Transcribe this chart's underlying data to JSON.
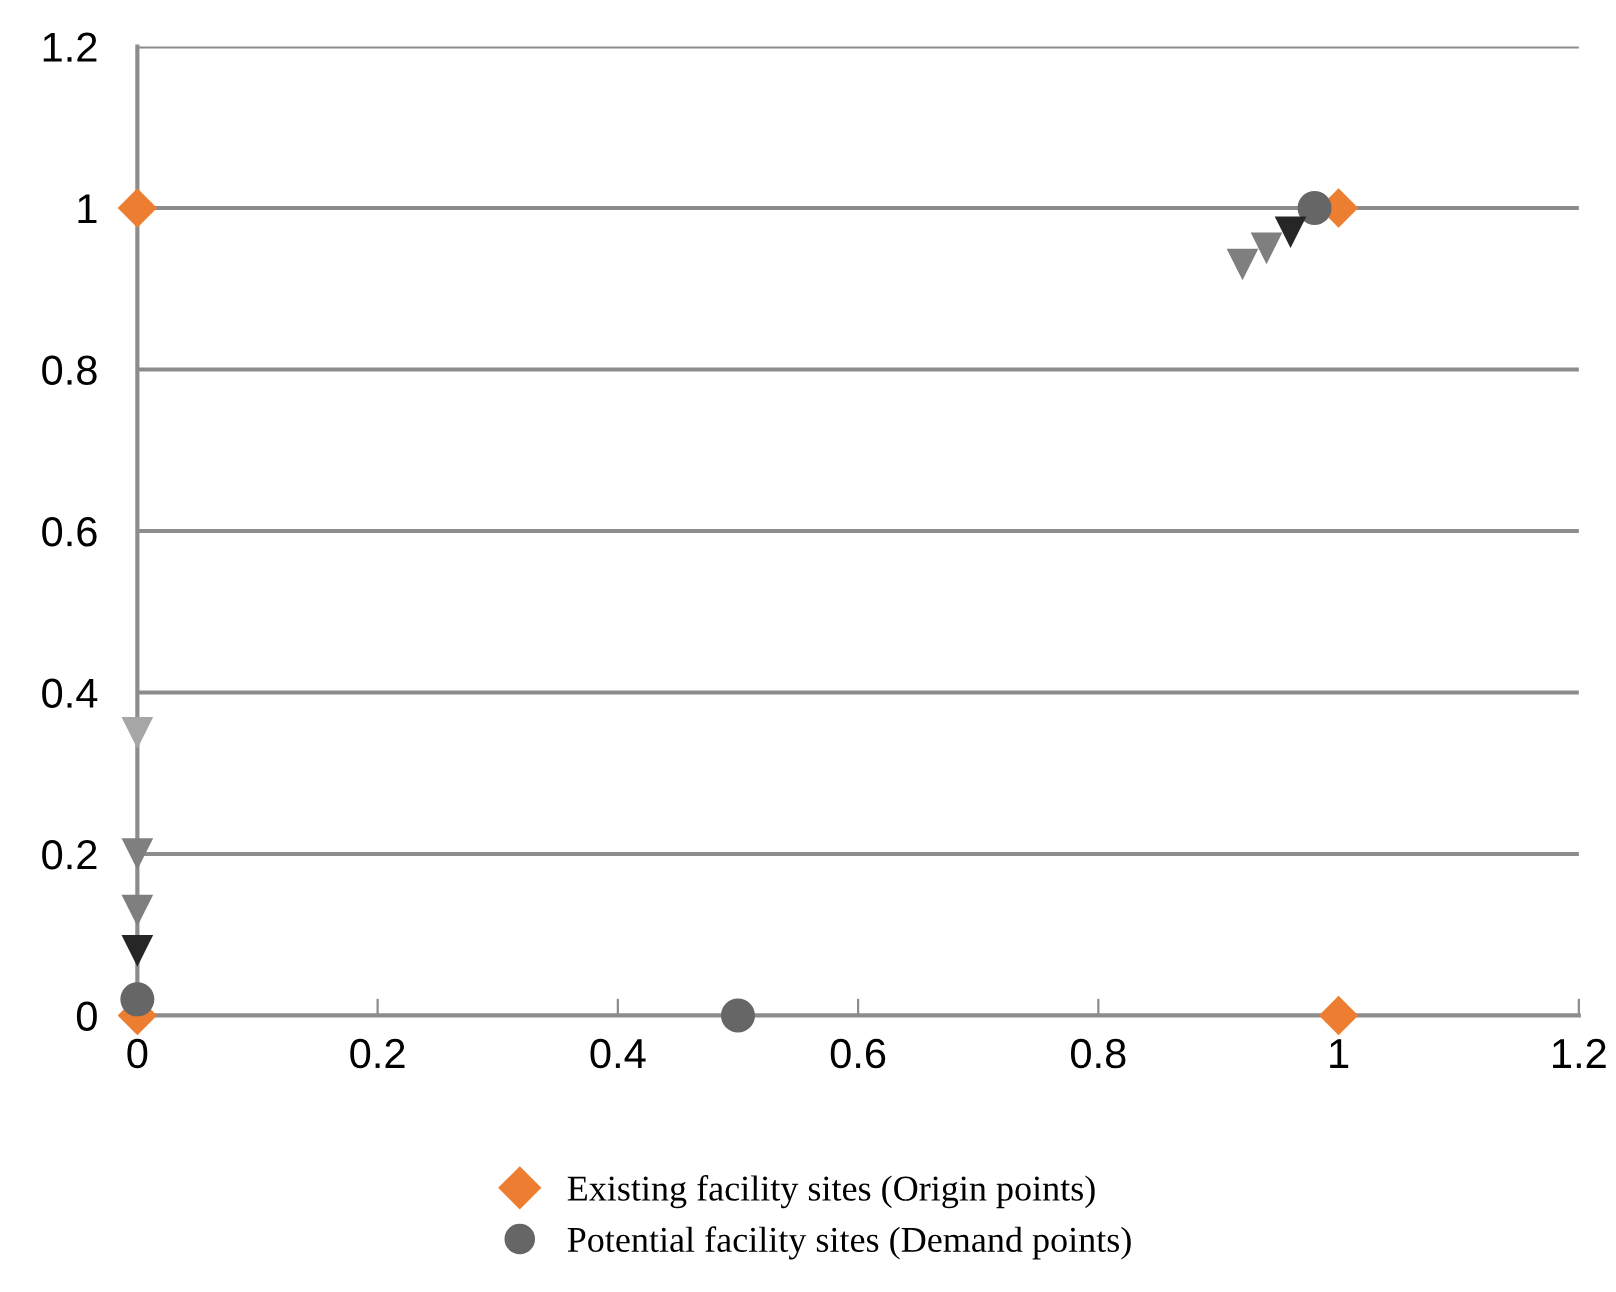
{
  "chart_data": {
    "type": "scatter",
    "series": [
      {
        "name": "Existing facility sites (Origin points)",
        "color": "#ed7d31",
        "marker": "diamond",
        "x": [
          0,
          1,
          0,
          1
        ],
        "values": [
          1,
          1,
          0,
          0
        ]
      },
      {
        "name": "Potential facility sites (Demand points)",
        "color": "#666666",
        "marker": "circle",
        "x": [
          0.98,
          0,
          0.5
        ],
        "values": [
          1,
          0.02,
          0
        ]
      },
      {
        "color": "#a6a6a6",
        "marker": "triangle",
        "x": [
          0
        ],
        "values": [
          0.35
        ]
      },
      {
        "color": "#7f7f7f",
        "marker": "triangle",
        "x": [
          0,
          0,
          0.92,
          0.94
        ],
        "values": [
          0.2,
          0.13,
          0.93,
          0.95
        ]
      },
      {
        "color": "#262626",
        "marker": "triangle",
        "x": [
          0,
          0.96
        ],
        "values": [
          0.08,
          0.97
        ]
      }
    ],
    "xlim": [
      0,
      1.2
    ],
    "xticks": [
      0,
      0.2,
      0.4,
      0.6,
      0.8,
      1,
      1.2
    ],
    "ylim": [
      0,
      1.2
    ],
    "yticks": [
      0,
      0.2,
      0.4,
      0.6,
      0.8,
      1,
      1.2
    ],
    "grid": "y",
    "legend": "bottom"
  }
}
